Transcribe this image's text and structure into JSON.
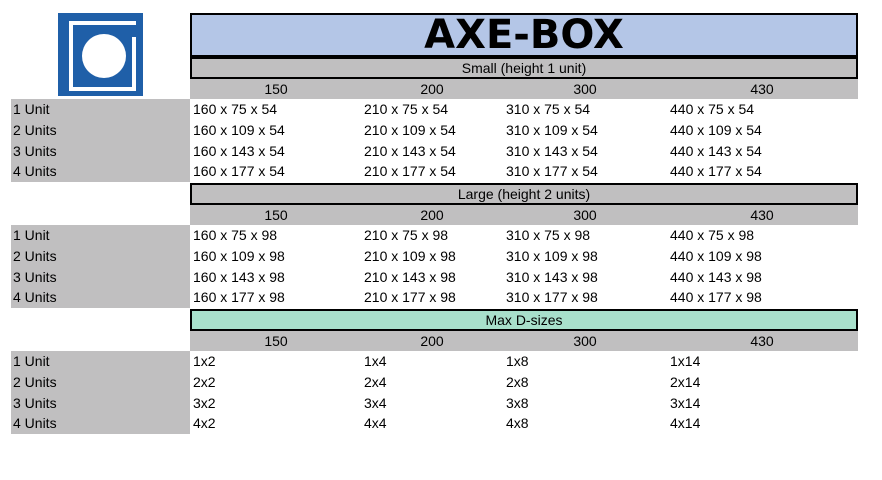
{
  "title": "AXE-BOX",
  "logo": {
    "icon": "axe-box-logo-icon",
    "color": "#1f5fa8"
  },
  "columns": [
    "150",
    "200",
    "300",
    "430"
  ],
  "row_labels": [
    "1 Unit",
    "2 Units",
    "3 Units",
    "4 Units"
  ],
  "sections": [
    {
      "header": "Small (height 1 unit)",
      "header_color": "#c0bfc0",
      "rows": [
        [
          "160 x 75 x 54",
          "210 x 75 x 54",
          "310 x 75 x 54",
          "440 x 75 x 54"
        ],
        [
          "160 x 109 x 54",
          "210 x 109 x 54",
          "310 x 109 x 54",
          "440 x 109 x 54"
        ],
        [
          "160 x 143 x 54",
          "210 x 143 x 54",
          "310 x 143 x 54",
          "440 x 143 x 54"
        ],
        [
          "160 x 177 x 54",
          "210 x 177 x 54",
          "310 x 177 x 54",
          "440 x 177 x 54"
        ]
      ]
    },
    {
      "header": "Large (height 2 units)",
      "header_color": "#c0bfc0",
      "rows": [
        [
          "160 x 75 x 98",
          "210 x 75 x 98",
          "310 x 75 x 98",
          "440 x 75 x 98"
        ],
        [
          "160 x 109 x 98",
          "210 x 109 x 98",
          "310 x 109 x 98",
          "440 x 109 x 98"
        ],
        [
          "160 x 143 x 98",
          "210 x 143 x 98",
          "310 x 143 x 98",
          "440 x 143 x 98"
        ],
        [
          "160 x 177 x 98",
          "210 x 177 x 98",
          "310 x 177 x 98",
          "440 x 177 x 98"
        ]
      ]
    },
    {
      "header": "Max D-sizes",
      "header_color": "#a8e0cb",
      "rows": [
        [
          "1x2",
          "1x4",
          "1x8",
          "1x14"
        ],
        [
          "2x2",
          "2x4",
          "2x8",
          "2x14"
        ],
        [
          "3x2",
          "3x4",
          "3x8",
          "3x14"
        ],
        [
          "4x2",
          "4x4",
          "4x8",
          "4x14"
        ]
      ]
    }
  ]
}
